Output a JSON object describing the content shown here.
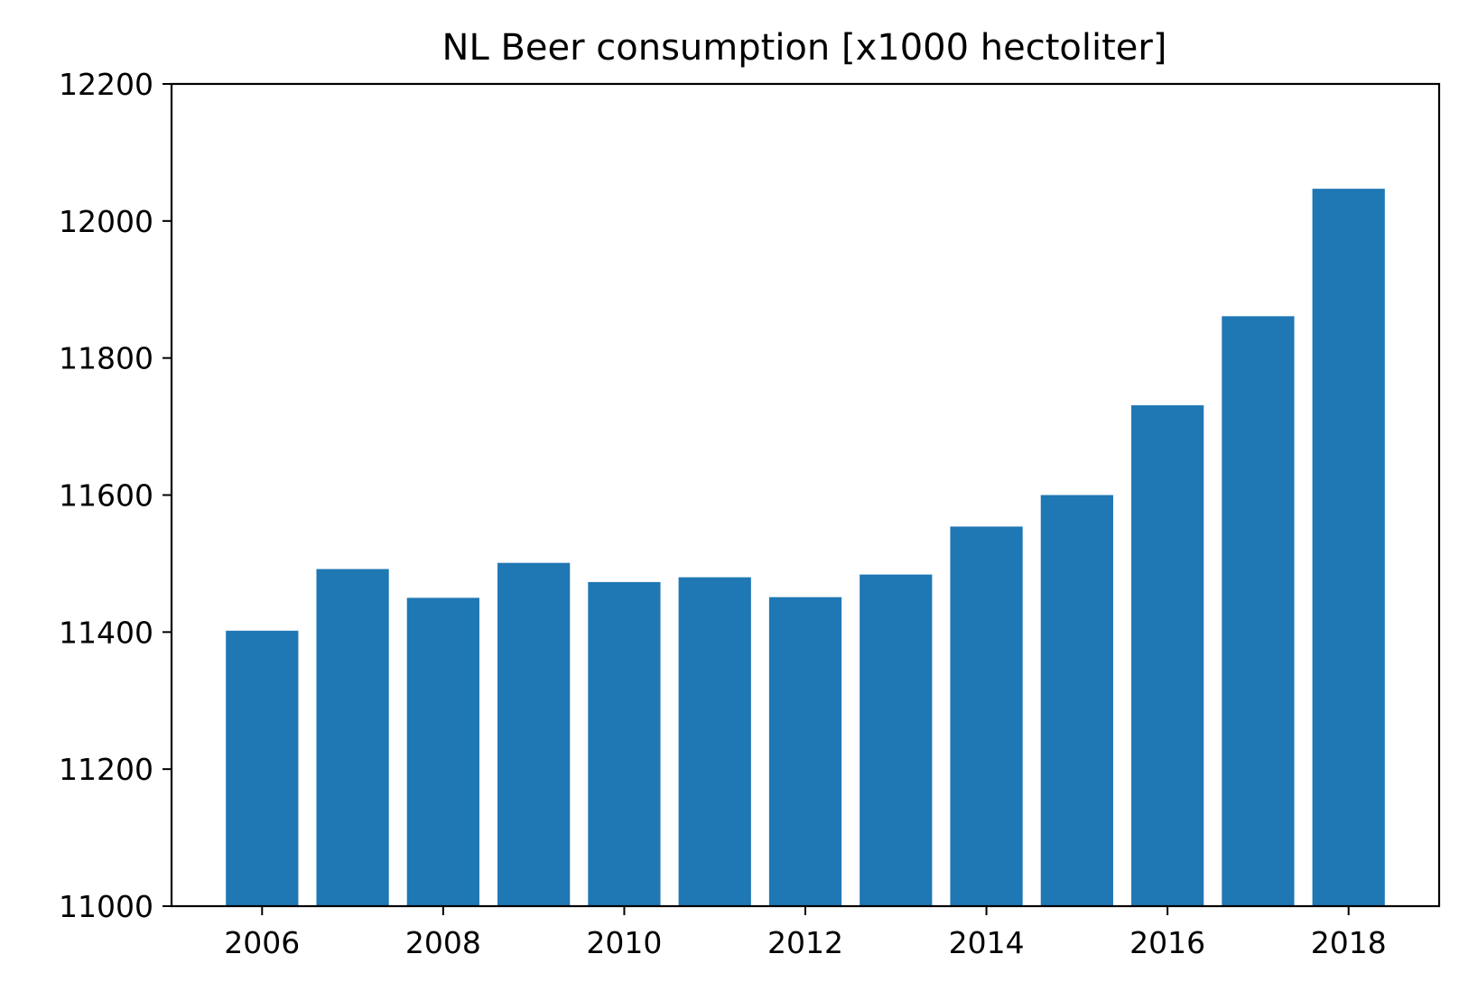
{
  "chart_data": {
    "type": "bar",
    "title": "NL Beer consumption [x1000 hectoliter]",
    "xlabel": "",
    "ylabel": "",
    "x": [
      2006,
      2007,
      2008,
      2009,
      2010,
      2011,
      2012,
      2013,
      2014,
      2015,
      2016,
      2017,
      2018
    ],
    "values": [
      11402,
      11492,
      11450,
      11501,
      11473,
      11480,
      11451,
      11484,
      11554,
      11600,
      11731,
      11861,
      12047
    ],
    "xticks": [
      "2006",
      "2008",
      "2010",
      "2012",
      "2014",
      "2016",
      "2018"
    ],
    "yticks": [
      "11000",
      "11200",
      "11400",
      "11600",
      "11800",
      "12000",
      "12200"
    ],
    "xlim": [
      2005.0,
      2019.0
    ],
    "ylim": [
      11000,
      12200
    ],
    "bar_color": "#1f77b4",
    "grid": false,
    "legend": "none"
  }
}
